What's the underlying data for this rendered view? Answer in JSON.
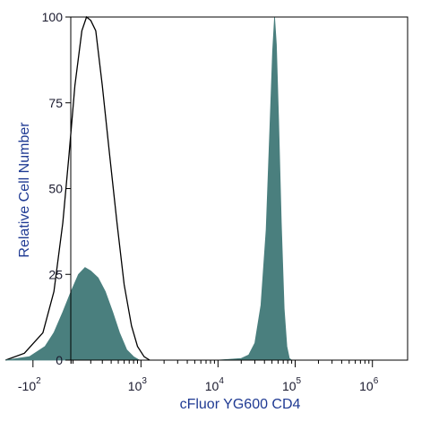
{
  "chart_data": {
    "type": "area",
    "xlabel": "cFluor YG600 CD4",
    "ylabel": "Relative Cell Number",
    "x_scale": "biexponential",
    "y_range": [
      0,
      100
    ],
    "y_ticks": [
      {
        "value": 0,
        "label": "0"
      },
      {
        "value": 25,
        "label": "25"
      },
      {
        "value": 50,
        "label": "50"
      },
      {
        "value": 75,
        "label": "75"
      },
      {
        "value": 100,
        "label": "100"
      }
    ],
    "x_ticks": [
      {
        "value": -100,
        "base": "-10",
        "exp": "2"
      },
      {
        "value": 1000,
        "base": "10",
        "exp": "3"
      },
      {
        "value": 10000,
        "base": "10",
        "exp": "4"
      },
      {
        "value": 100000,
        "base": "10",
        "exp": "5"
      },
      {
        "value": 1000000,
        "base": "10",
        "exp": "6"
      }
    ],
    "grid": false,
    "legend": "none",
    "series": [
      {
        "style": "outline",
        "color": "#000000",
        "points": [
          [
            -300,
            0
          ],
          [
            -150,
            2
          ],
          [
            -50,
            8
          ],
          [
            0,
            20
          ],
          [
            40,
            40
          ],
          [
            70,
            60
          ],
          [
            100,
            80
          ],
          [
            140,
            96
          ],
          [
            170,
            100
          ],
          [
            200,
            99
          ],
          [
            240,
            96
          ],
          [
            300,
            80
          ],
          [
            380,
            60
          ],
          [
            480,
            40
          ],
          [
            600,
            22
          ],
          [
            750,
            10
          ],
          [
            900,
            4
          ],
          [
            1100,
            1
          ],
          [
            1300,
            0
          ]
        ]
      },
      {
        "style": "filled",
        "color": "#4a7f7e",
        "points": [
          [
            -300,
            0
          ],
          [
            -120,
            1
          ],
          [
            -40,
            4
          ],
          [
            0,
            8
          ],
          [
            40,
            14
          ],
          [
            80,
            20
          ],
          [
            120,
            25
          ],
          [
            160,
            27
          ],
          [
            200,
            26
          ],
          [
            260,
            24
          ],
          [
            330,
            20
          ],
          [
            420,
            14
          ],
          [
            520,
            8
          ],
          [
            650,
            3
          ],
          [
            800,
            1
          ],
          [
            950,
            0
          ],
          [
            10000,
            0
          ],
          [
            20000,
            0.5
          ],
          [
            25000,
            1.5
          ],
          [
            30000,
            5
          ],
          [
            36000,
            16
          ],
          [
            42000,
            38
          ],
          [
            47000,
            68
          ],
          [
            51000,
            90
          ],
          [
            54000,
            100
          ],
          [
            57000,
            92
          ],
          [
            61000,
            70
          ],
          [
            66000,
            40
          ],
          [
            72000,
            15
          ],
          [
            78000,
            4
          ],
          [
            84000,
            0.5
          ],
          [
            90000,
            0
          ]
        ]
      }
    ]
  }
}
